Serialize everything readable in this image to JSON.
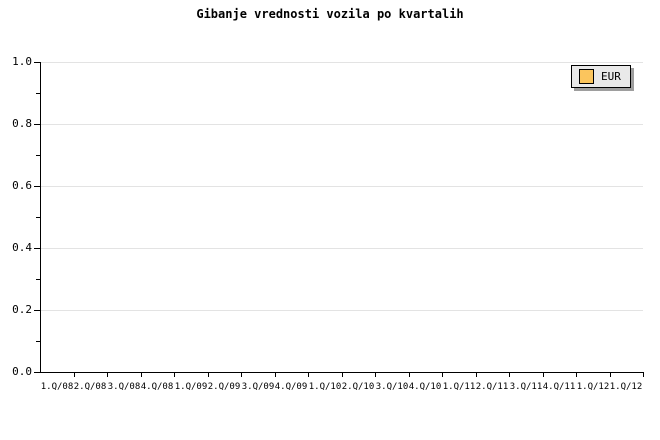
{
  "title": "Gibanje vrednosti vozila po kvartalih",
  "legend": {
    "position": "top-right-inside",
    "items": [
      {
        "label": "EUR",
        "swatch_color": "#FBC55D"
      }
    ]
  },
  "colors": {
    "background": "#FFFFFF",
    "text": "#000000",
    "axis": "#000000",
    "gridline": "#E3E3E3",
    "legend_background": "#E9E9E9",
    "legend_border": "#000000",
    "legend_shadow": "#9E9E9E",
    "series_eur": "#FBC55D"
  },
  "y_axis": {
    "tick_labels": [
      "1.0",
      "0.8",
      "0.6",
      "0.4",
      "0.2",
      "0.0"
    ]
  },
  "x_axis": {
    "tick_labels": [
      "1.Q/08",
      "2.Q/08",
      "3.Q/08",
      "4.Q/08",
      "1.Q/09",
      "2.Q/09",
      "3.Q/09",
      "4.Q/09",
      "1.Q/10",
      "2.Q/10",
      "3.Q/10",
      "4.Q/10",
      "1.Q/11",
      "2.Q/11",
      "3.Q/11",
      "4.Q/11",
      "1.Q/12",
      "1.Q/12"
    ]
  },
  "chart_data": {
    "type": "bar",
    "title": "Gibanje vrednosti vozila po kvartalih",
    "categories": [
      "1.Q/08",
      "2.Q/08",
      "3.Q/08",
      "4.Q/08",
      "1.Q/09",
      "2.Q/09",
      "3.Q/09",
      "4.Q/09",
      "1.Q/10",
      "2.Q/10",
      "3.Q/10",
      "4.Q/10",
      "1.Q/11",
      "2.Q/11",
      "3.Q/11",
      "4.Q/11",
      "1.Q/12",
      "1.Q/12"
    ],
    "series": [
      {
        "name": "EUR",
        "color": "#FBC55D",
        "values": []
      }
    ],
    "xlabel": "",
    "ylabel": "",
    "ylim": [
      0.0,
      1.0
    ],
    "y_major_ticks": [
      1.0,
      0.8,
      0.6,
      0.4,
      0.2,
      0.0
    ],
    "y_minor_tick_step": 0.1,
    "grid": "horizontal-major-only",
    "legend_position": "top-right-inside"
  }
}
